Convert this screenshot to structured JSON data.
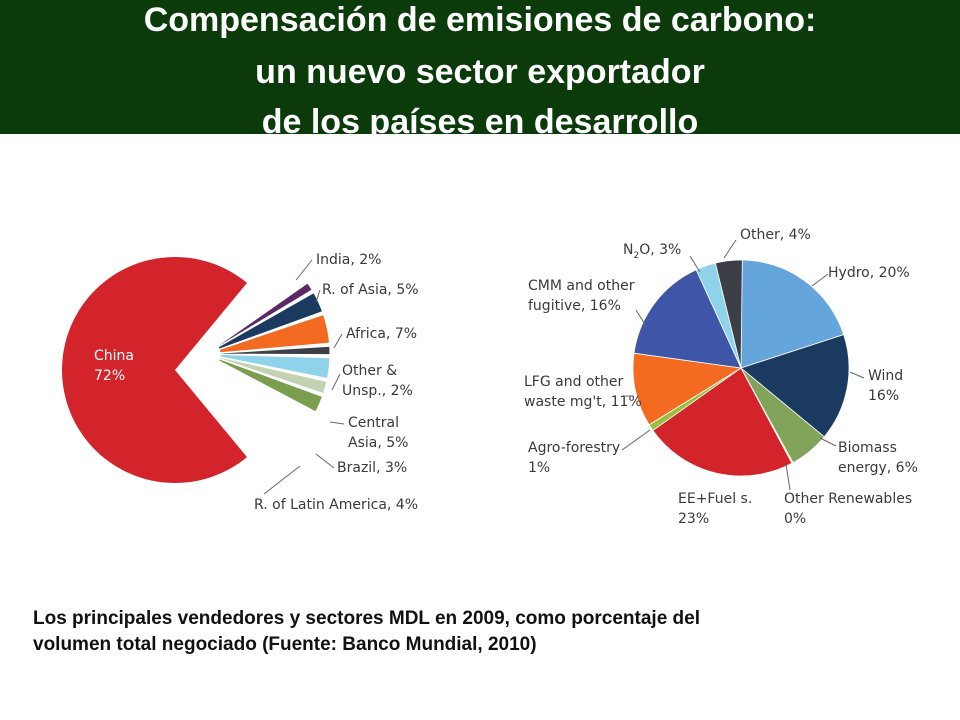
{
  "header": {
    "title_lines": [
      "Compensación de emisiones de carbono:",
      "un nuevo sector exportador",
      "de los países en desarrollo"
    ]
  },
  "chart_data": [
    {
      "type": "pie",
      "categories": [
        "China",
        "India",
        "R. of Asia",
        "Africa",
        "Other & Unsp.",
        "Central Asia",
        "Brazil",
        "R. of Latin America"
      ],
      "values": [
        72,
        2,
        5,
        7,
        2,
        5,
        3,
        4
      ],
      "labels": [
        [
          "China",
          "72%"
        ],
        [
          "India, 2%"
        ],
        [
          "R. of Asia, 5%"
        ],
        [
          "Africa, 7%"
        ],
        [
          "Other &",
          "Unsp., 2%"
        ],
        [
          "Central",
          "Asia, 5%"
        ],
        [
          "Brazil, 3%"
        ],
        [
          "R. of Latin America, 4%"
        ]
      ],
      "colors": [
        "#d2242a",
        "#5b2a66",
        "#1b3a60",
        "#f26b21",
        "#3d3f47",
        "#8fd3ea",
        "#c3d3b1",
        "#7a9e4e"
      ]
    },
    {
      "type": "pie",
      "categories": [
        "Hydro",
        "Wind",
        "Biomass energy",
        "Other Renewables",
        "EE+Fuel s.",
        "Agro-forestry",
        "LFG and other waste mg't",
        "CMM and other fugitive",
        "N2O",
        "Other"
      ],
      "values": [
        20,
        16,
        6,
        0,
        23,
        1,
        11,
        16,
        3,
        4
      ],
      "labels": [
        [
          "Hydro, 20%"
        ],
        [
          "Wind",
          "16%"
        ],
        [
          "Biomass",
          "energy, 6%"
        ],
        [
          "Other Renewables",
          "0%"
        ],
        [
          "EE+Fuel s.",
          "23%"
        ],
        [
          "Agro-forestry",
          "1%"
        ],
        [
          "LFG and other",
          "waste mg't, 11%"
        ],
        [
          "CMM and other",
          "fugitive, 16%"
        ],
        [
          "N",
          "2",
          "O, 3%"
        ],
        [
          "Other, 4%"
        ]
      ],
      "colors": [
        "#64a6dc",
        "#1b3a60",
        "#82a35a",
        "#f5d11f",
        "#d2242a",
        "#9bbf3b",
        "#f26b21",
        "#3f55a8",
        "#8fd3ea",
        "#3d3f47"
      ]
    }
  ],
  "caption": {
    "lines": [
      "Los principales vendedores y sectores MDL en 2009, como porcentaje del",
      "volumen total negociado (Fuente: Banco Mundial, 2010)"
    ]
  }
}
